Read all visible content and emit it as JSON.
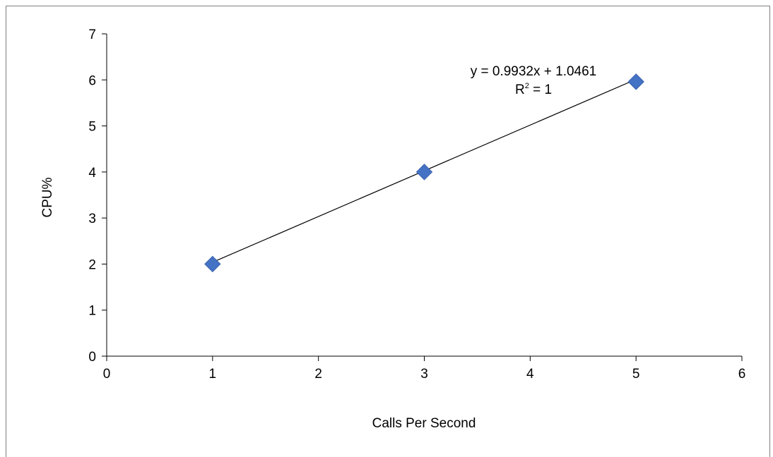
{
  "chart_data": {
    "type": "scatter",
    "xlabel": "Calls Per Second",
    "ylabel": "CPU%",
    "xlim": [
      0,
      6
    ],
    "ylim": [
      0,
      7
    ],
    "x_ticks": [
      "0",
      "1",
      "2",
      "3",
      "4",
      "5",
      "6"
    ],
    "y_ticks": [
      "0",
      "1",
      "2",
      "3",
      "4",
      "5",
      "6",
      "7"
    ],
    "series": [
      {
        "points": [
          {
            "x": 1,
            "y": 2
          },
          {
            "x": 3,
            "y": 4
          },
          {
            "x": 5,
            "y": 5.96
          }
        ],
        "marker": "diamond",
        "color": "#4472C4"
      }
    ],
    "trendline": {
      "type": "linear",
      "slope": 0.9932,
      "intercept": 1.0461,
      "x_range": [
        1,
        5
      ],
      "equation": "y = 0.9932x + 1.0461",
      "r2_prefix": "R",
      "r2_sup": "2",
      "r2_suffix": " = 1"
    },
    "grid": false,
    "legend": "none"
  }
}
